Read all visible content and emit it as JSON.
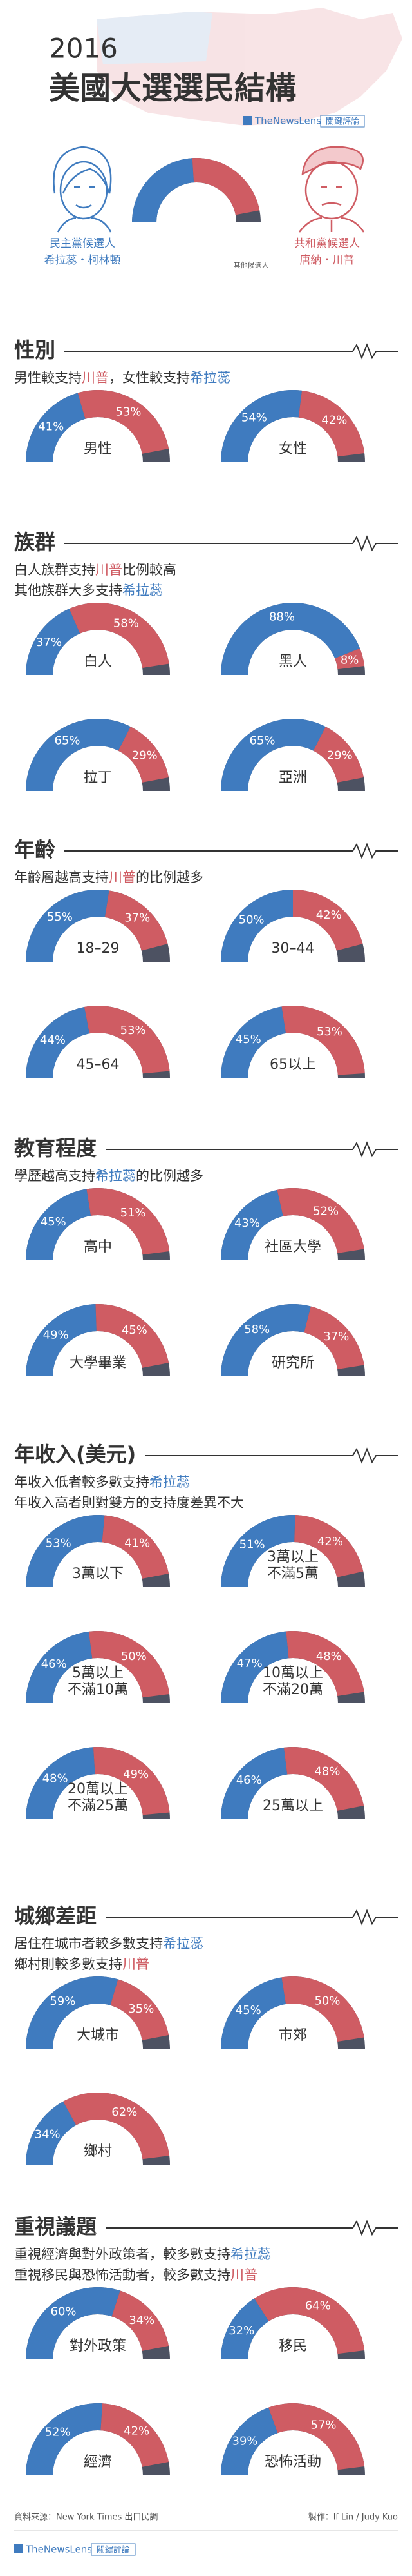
{
  "header": {
    "year": "2016",
    "title": "美國大選選民結構",
    "brand": "TheNewsLens",
    "brand_zh": "關鍵評論",
    "candidates": [
      {
        "party": "民主黨候選人",
        "name": "希拉蕊・柯林頓",
        "color": "#3f7bbf"
      },
      {
        "party": "共和黨候選人",
        "name": "唐納・川普",
        "color": "#cf5c63"
      }
    ],
    "other": "其他候選人"
  },
  "chart_data": [
    {
      "type": "semi-donut",
      "title": "性別",
      "subtitle": [
        [
          "男性較支持",
          {
            "text": "川普",
            "color": "#cf5c63"
          },
          "，女性較支持",
          {
            "text": "希拉蕊",
            "color": "#3f7bbf"
          }
        ]
      ],
      "categories": [
        [
          "男性"
        ],
        [
          "女性"
        ]
      ],
      "series": [
        {
          "color": "#3f7bbf",
          "values": [
            41,
            54
          ],
          "value_labels": [
            "41%",
            "54%"
          ]
        },
        {
          "color": "#cf5c63",
          "values": [
            53,
            42
          ],
          "value_labels": [
            "53%",
            "42%"
          ]
        }
      ]
    },
    {
      "type": "semi-donut",
      "title": "族群",
      "subtitle": [
        [
          "白人族群支持",
          {
            "text": "川普",
            "color": "#cf5c63"
          },
          "比例較高"
        ],
        [
          "其他族群大多支持",
          {
            "text": "希拉蕊",
            "color": "#3f7bbf"
          }
        ]
      ],
      "categories": [
        [
          "白人"
        ],
        [
          "黑人"
        ],
        [
          "拉丁"
        ],
        [
          "亞洲"
        ]
      ],
      "series": [
        {
          "color": "#3f7bbf",
          "values": [
            37,
            88,
            65,
            65
          ],
          "value_labels": [
            "37%",
            "88%",
            "65%",
            "65%"
          ]
        },
        {
          "color": "#cf5c63",
          "values": [
            58,
            8,
            29,
            29
          ],
          "value_labels": [
            "58%",
            "8%",
            "29%",
            "29%"
          ]
        }
      ]
    },
    {
      "type": "semi-donut",
      "title": "年齡",
      "subtitle": [
        [
          "年齡層越高支持",
          {
            "text": "川普",
            "color": "#cf5c63"
          },
          "的比例越多"
        ]
      ],
      "categories": [
        [
          "18–29"
        ],
        [
          "30–44"
        ],
        [
          "45–64"
        ],
        [
          "65以上"
        ]
      ],
      "series": [
        {
          "color": "#3f7bbf",
          "values": [
            55,
            50,
            44,
            45
          ],
          "value_labels": [
            "55%",
            "50%",
            "44%",
            "45%"
          ]
        },
        {
          "color": "#cf5c63",
          "values": [
            37,
            42,
            53,
            53
          ],
          "value_labels": [
            "37%",
            "42%",
            "53%",
            "53%"
          ]
        }
      ]
    },
    {
      "type": "semi-donut",
      "title": "教育程度",
      "subtitle": [
        [
          "學歷越高支持",
          {
            "text": "希拉蕊",
            "color": "#3f7bbf"
          },
          "的比例越多"
        ]
      ],
      "categories": [
        [
          "高中"
        ],
        [
          "社區大學"
        ],
        [
          "大學畢業"
        ],
        [
          "研究所"
        ]
      ],
      "series": [
        {
          "color": "#3f7bbf",
          "values": [
            45,
            43,
            49,
            58
          ],
          "value_labels": [
            "45%",
            "43%",
            "49%",
            "58%"
          ]
        },
        {
          "color": "#cf5c63",
          "values": [
            51,
            52,
            45,
            37
          ],
          "value_labels": [
            "51%",
            "52%",
            "45%",
            "37%"
          ]
        }
      ]
    },
    {
      "type": "semi-donut",
      "title": "年收入(美元)",
      "subtitle": [
        [
          "年收入低者較多數支持",
          {
            "text": "希拉蕊",
            "color": "#3f7bbf"
          }
        ],
        [
          "年收入高者則對雙方的支持度差異不大"
        ]
      ],
      "categories": [
        [
          "3萬以下"
        ],
        [
          "3萬以上",
          "不滿5萬"
        ],
        [
          "5萬以上",
          "不滿10萬"
        ],
        [
          "10萬以上",
          "不滿20萬"
        ],
        [
          "20萬以上",
          "不滿25萬"
        ],
        [
          "25萬以上"
        ]
      ],
      "series": [
        {
          "color": "#3f7bbf",
          "values": [
            53,
            51,
            46,
            47,
            48,
            46
          ],
          "value_labels": [
            "53%",
            "51%",
            "46%",
            "47%",
            "48%",
            "46%"
          ]
        },
        {
          "color": "#cf5c63",
          "values": [
            41,
            42,
            50,
            48,
            49,
            48
          ],
          "value_labels": [
            "41%",
            "42%",
            "50%",
            "48%",
            "49%",
            "48%"
          ]
        }
      ]
    },
    {
      "type": "semi-donut",
      "title": "城鄉差距",
      "subtitle": [
        [
          "居住在城市者較多數支持",
          {
            "text": "希拉蕊",
            "color": "#3f7bbf"
          }
        ],
        [
          "鄉村則較多數支持",
          {
            "text": "川普",
            "color": "#cf5c63"
          }
        ]
      ],
      "categories": [
        [
          "大城市"
        ],
        [
          "市郊"
        ],
        [
          "鄉村"
        ]
      ],
      "series": [
        {
          "color": "#3f7bbf",
          "values": [
            59,
            45,
            34
          ],
          "value_labels": [
            "59%",
            "45%",
            "34%"
          ]
        },
        {
          "color": "#cf5c63",
          "values": [
            35,
            50,
            62
          ],
          "value_labels": [
            "35%",
            "50%",
            "62%"
          ]
        }
      ]
    },
    {
      "type": "semi-donut",
      "title": "重視議題",
      "subtitle": [
        [
          "重視經濟與對外政策者，較多數支持",
          {
            "text": "希拉蕊",
            "color": "#3f7bbf"
          }
        ],
        [
          "重視移民與恐怖活動者，較多數支持",
          {
            "text": "川普",
            "color": "#cf5c63"
          }
        ]
      ],
      "categories": [
        [
          "對外政策"
        ],
        [
          "移民"
        ],
        [
          "經濟"
        ],
        [
          "恐怖活動"
        ]
      ],
      "series": [
        {
          "color": "#3f7bbf",
          "values": [
            60,
            32,
            52,
            39
          ],
          "value_labels": [
            "60%",
            "32%",
            "52%",
            "39%"
          ]
        },
        {
          "color": "#cf5c63",
          "values": [
            34,
            64,
            42,
            57
          ],
          "value_labels": [
            "34%",
            "64%",
            "42%",
            "57%"
          ]
        }
      ]
    }
  ],
  "footer": {
    "source": "資料來源：New York Times 出口民調",
    "credit": "製作：lf Lin / Judy Kuo"
  }
}
